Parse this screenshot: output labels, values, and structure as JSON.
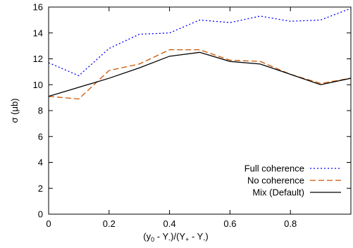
{
  "chart_data": {
    "type": "line",
    "title": "",
    "xlabel": {
      "base": "(y",
      "sub1": "0",
      "mid1": " - Y",
      "sub2": "-",
      "mid2": ")/(Y",
      "sub3": "+",
      "mid3": " - Y",
      "sub4": "-",
      "end": ")"
    },
    "ylabel": "σ (μb)",
    "xlim": [
      0,
      1
    ],
    "ylim": [
      0,
      16
    ],
    "xticks": [
      0,
      0.2,
      0.4,
      0.6,
      0.8
    ],
    "xtick_labels": [
      "0",
      "0.2",
      "0.4",
      "0.6",
      "0.8"
    ],
    "yticks": [
      0,
      2,
      4,
      6,
      8,
      10,
      12,
      14,
      16
    ],
    "ytick_labels": [
      "0",
      "2",
      "4",
      "6",
      "8",
      "10",
      "12",
      "14",
      "16"
    ],
    "grid": false,
    "legend_position": "bottom-right",
    "series": [
      {
        "name": "Full coherence",
        "color": "#0000ff",
        "dash": "dotted",
        "x": [
          0,
          0.1,
          0.2,
          0.3,
          0.4,
          0.5,
          0.6,
          0.7,
          0.8,
          0.9,
          1.0
        ],
        "y": [
          11.7,
          10.7,
          12.8,
          13.9,
          14.0,
          15.0,
          14.8,
          15.3,
          14.9,
          15.0,
          15.9
        ]
      },
      {
        "name": "No coherence",
        "color": "#cc5500",
        "dash": "dashed",
        "x": [
          0,
          0.1,
          0.2,
          0.3,
          0.4,
          0.5,
          0.6,
          0.7,
          0.8,
          0.9,
          1.0
        ],
        "y": [
          9.1,
          8.9,
          11.1,
          11.6,
          12.7,
          12.7,
          11.9,
          11.8,
          10.8,
          10.1,
          10.5
        ]
      },
      {
        "name": "Mix (Default)",
        "color": "#000000",
        "dash": "solid",
        "x": [
          0,
          0.1,
          0.2,
          0.3,
          0.4,
          0.5,
          0.6,
          0.7,
          0.8,
          0.9,
          1.0
        ],
        "y": [
          9.1,
          9.8,
          10.5,
          11.3,
          12.2,
          12.5,
          11.8,
          11.6,
          10.8,
          10.0,
          10.5
        ]
      }
    ]
  }
}
